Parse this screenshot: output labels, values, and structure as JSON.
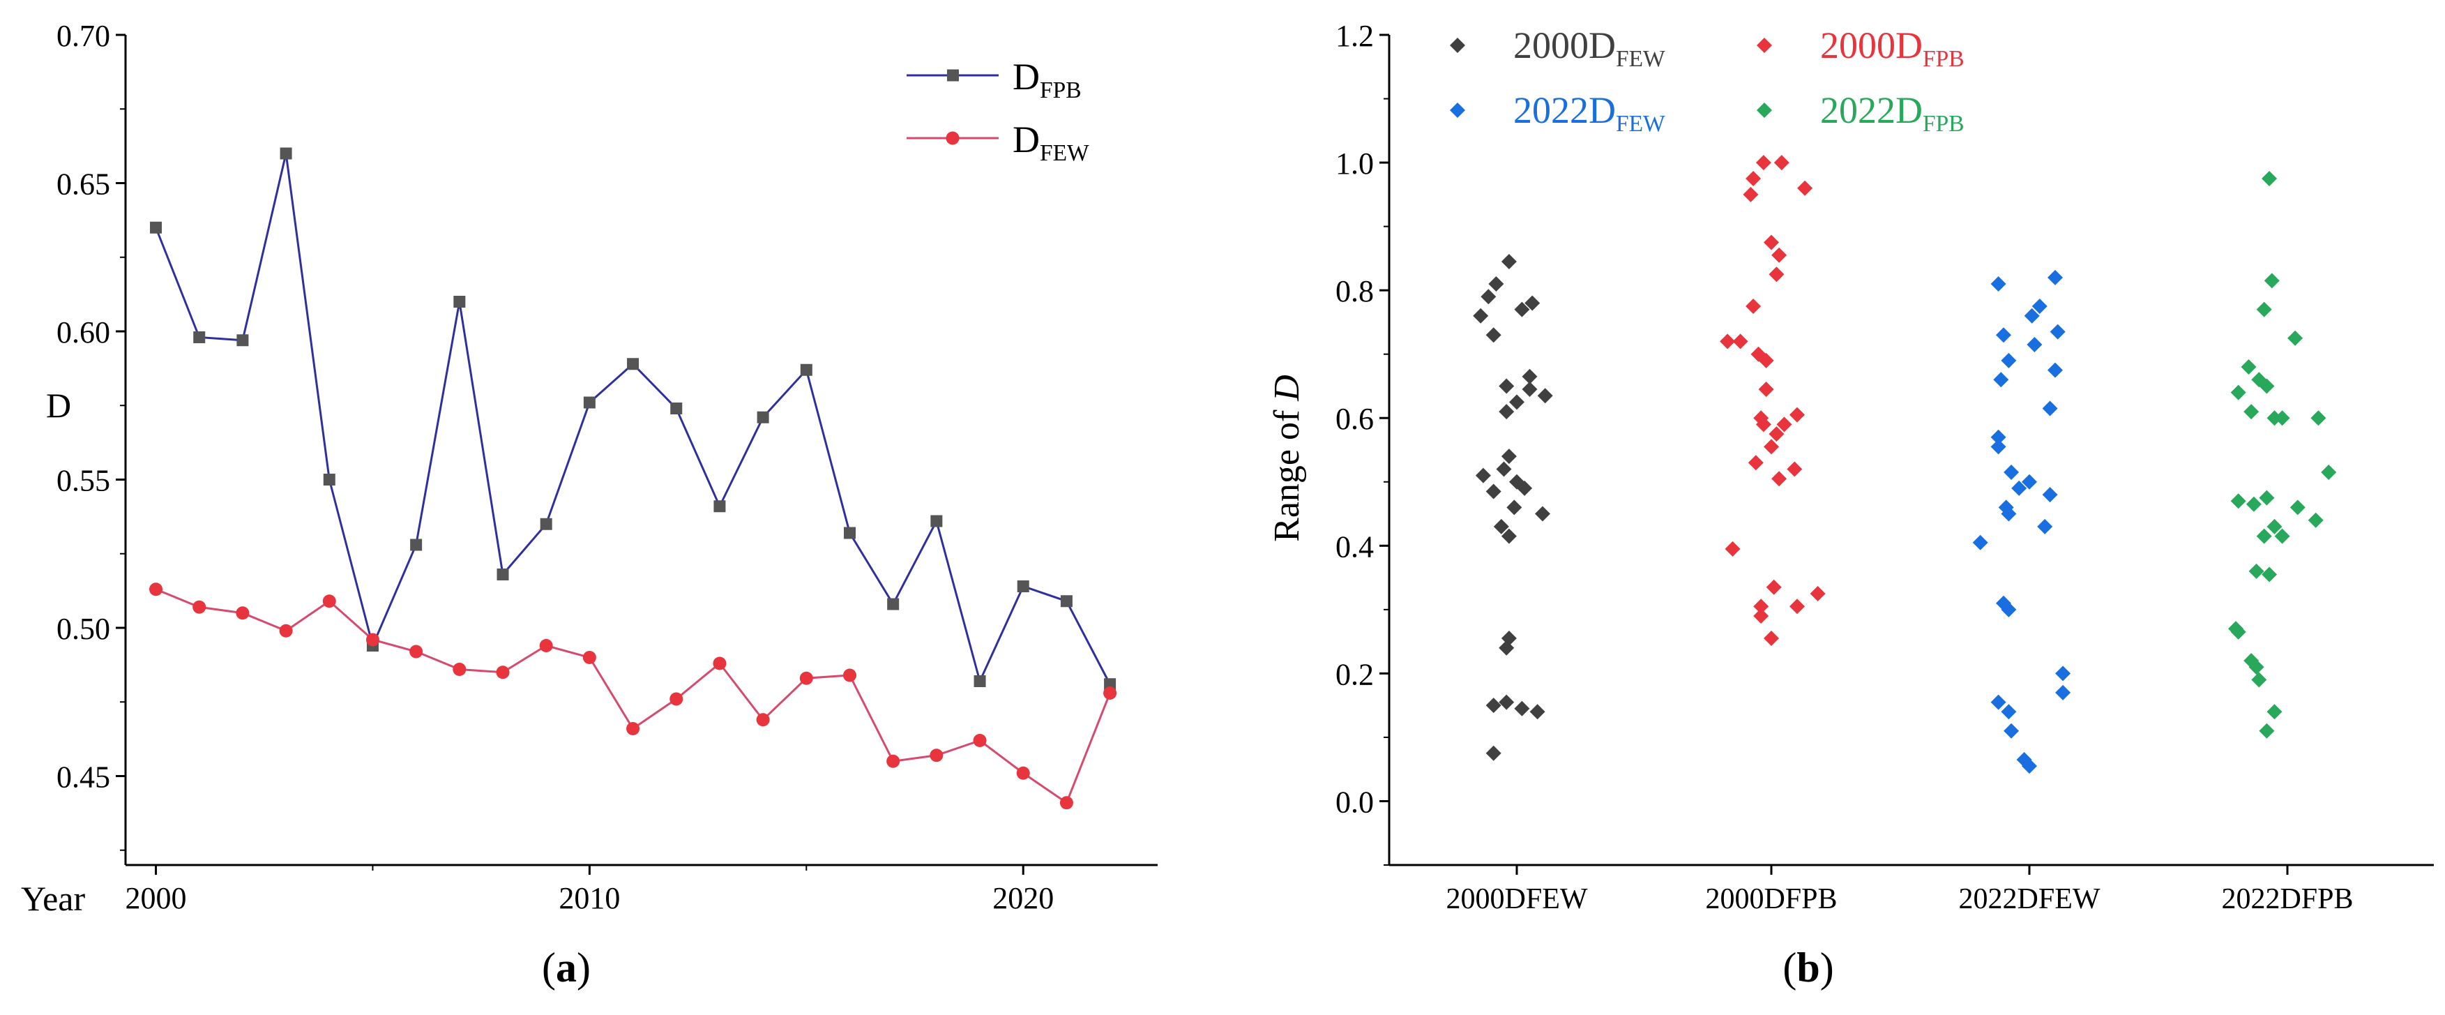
{
  "chart_data": [
    {
      "panel_label": "(a)",
      "panel_label_parts": {
        "open": "(",
        "letter": "a",
        "close": ")"
      },
      "type": "line",
      "xlabel": "Year",
      "ylabel": "D",
      "xlim": [
        1999.3,
        2023.1
      ],
      "ylim": [
        0.42,
        0.7
      ],
      "xticks": [
        2000,
        2010,
        2020
      ],
      "yticks": [
        0.45,
        0.5,
        0.55,
        0.6,
        0.65,
        0.7
      ],
      "ytick_labels": [
        "0.45",
        "0.50",
        "0.55",
        "0.60",
        "0.65",
        "0.70"
      ],
      "legend": [
        {
          "base": "D",
          "sub": "FPB",
          "color": "#2f2fa0",
          "marker": "square"
        },
        {
          "base": "D",
          "sub": "FEW",
          "color": "#d64a6e",
          "marker": "circle"
        }
      ],
      "x": [
        2000,
        2001,
        2002,
        2003,
        2004,
        2005,
        2006,
        2007,
        2008,
        2009,
        2010,
        2011,
        2012,
        2013,
        2014,
        2015,
        2016,
        2017,
        2018,
        2019,
        2020,
        2021,
        2022
      ],
      "series": [
        {
          "name": "DFPB",
          "line_color": "#2f2fa0",
          "marker_color": "#555555",
          "marker": "square",
          "values": [
            0.635,
            0.598,
            0.597,
            0.66,
            0.55,
            0.494,
            0.528,
            0.61,
            0.518,
            0.535,
            0.576,
            0.589,
            0.574,
            0.541,
            0.571,
            0.587,
            0.532,
            0.508,
            0.536,
            0.482,
            0.514,
            0.509,
            0.481
          ]
        },
        {
          "name": "DFEW",
          "line_color": "#d64a6e",
          "marker_color": "#e8343c",
          "marker": "circle",
          "values": [
            0.513,
            0.507,
            0.505,
            0.499,
            0.509,
            0.496,
            0.492,
            0.486,
            0.485,
            0.494,
            0.49,
            0.466,
            0.476,
            0.488,
            0.469,
            0.483,
            0.484,
            0.455,
            0.457,
            0.462,
            0.451,
            0.441,
            0.478
          ]
        }
      ]
    },
    {
      "panel_label": "(b)",
      "panel_label_parts": {
        "open": "(",
        "letter": "b",
        "close": ")"
      },
      "type": "scatter",
      "ylabel": "Range of D",
      "ylabel_parts": {
        "main": "Range of ",
        "italic": "D"
      },
      "ylim": [
        -0.1,
        1.2
      ],
      "yticks": [
        0.0,
        0.2,
        0.4,
        0.6,
        0.8,
        1.0,
        1.2
      ],
      "ytick_labels": [
        "0.0",
        "0.2",
        "0.4",
        "0.6",
        "0.8",
        "1.0",
        "1.2"
      ],
      "categories": [
        "2000DFEW",
        "2000DFPB",
        "2022DFEW",
        "2022DFPB"
      ],
      "legend": [
        {
          "year": "2000",
          "base": "D",
          "sub": "FEW",
          "color": "#404040"
        },
        {
          "year": "2000",
          "base": "D",
          "sub": "FPB",
          "color": "#e8343c"
        },
        {
          "year": "2022",
          "base": "D",
          "sub": "FEW",
          "color": "#1a6fe0"
        },
        {
          "year": "2022",
          "base": "D",
          "sub": "FPB",
          "color": "#27a85a"
        }
      ],
      "series": [
        {
          "name": "2000DFEW",
          "color": "#404040",
          "points": [
            {
              "dx": -0.03,
              "y": 0.845
            },
            {
              "dx": -0.08,
              "y": 0.81
            },
            {
              "dx": -0.11,
              "y": 0.79
            },
            {
              "dx": 0.06,
              "y": 0.78
            },
            {
              "dx": 0.02,
              "y": 0.77
            },
            {
              "dx": -0.14,
              "y": 0.76
            },
            {
              "dx": -0.09,
              "y": 0.73
            },
            {
              "dx": 0.05,
              "y": 0.665
            },
            {
              "dx": -0.04,
              "y": 0.65
            },
            {
              "dx": 0.05,
              "y": 0.645
            },
            {
              "dx": 0.11,
              "y": 0.635
            },
            {
              "dx": 0.0,
              "y": 0.625
            },
            {
              "dx": -0.04,
              "y": 0.61
            },
            {
              "dx": -0.03,
              "y": 0.54
            },
            {
              "dx": -0.05,
              "y": 0.52
            },
            {
              "dx": -0.13,
              "y": 0.51
            },
            {
              "dx": 0.0,
              "y": 0.5
            },
            {
              "dx": 0.03,
              "y": 0.49
            },
            {
              "dx": -0.09,
              "y": 0.485
            },
            {
              "dx": -0.01,
              "y": 0.46
            },
            {
              "dx": 0.1,
              "y": 0.45
            },
            {
              "dx": -0.06,
              "y": 0.43
            },
            {
              "dx": -0.03,
              "y": 0.415
            },
            {
              "dx": -0.03,
              "y": 0.255
            },
            {
              "dx": -0.04,
              "y": 0.24
            },
            {
              "dx": -0.09,
              "y": 0.15
            },
            {
              "dx": -0.04,
              "y": 0.155
            },
            {
              "dx": 0.02,
              "y": 0.145
            },
            {
              "dx": 0.08,
              "y": 0.14
            },
            {
              "dx": -0.09,
              "y": 0.075
            }
          ]
        },
        {
          "name": "2000DFPB",
          "color": "#e8343c",
          "points": [
            {
              "dx": -0.03,
              "y": 1.0
            },
            {
              "dx": 0.04,
              "y": 1.0
            },
            {
              "dx": -0.07,
              "y": 0.975
            },
            {
              "dx": 0.13,
              "y": 0.96
            },
            {
              "dx": -0.08,
              "y": 0.95
            },
            {
              "dx": 0.0,
              "y": 0.875
            },
            {
              "dx": 0.03,
              "y": 0.855
            },
            {
              "dx": 0.02,
              "y": 0.825
            },
            {
              "dx": -0.07,
              "y": 0.775
            },
            {
              "dx": -0.17,
              "y": 0.72
            },
            {
              "dx": -0.12,
              "y": 0.72
            },
            {
              "dx": -0.05,
              "y": 0.7
            },
            {
              "dx": -0.02,
              "y": 0.69
            },
            {
              "dx": -0.02,
              "y": 0.645
            },
            {
              "dx": 0.1,
              "y": 0.605
            },
            {
              "dx": -0.04,
              "y": 0.6
            },
            {
              "dx": -0.03,
              "y": 0.59
            },
            {
              "dx": 0.05,
              "y": 0.59
            },
            {
              "dx": 0.02,
              "y": 0.575
            },
            {
              "dx": 0.0,
              "y": 0.555
            },
            {
              "dx": -0.06,
              "y": 0.53
            },
            {
              "dx": 0.09,
              "y": 0.52
            },
            {
              "dx": 0.03,
              "y": 0.505
            },
            {
              "dx": -0.15,
              "y": 0.395
            },
            {
              "dx": 0.01,
              "y": 0.335
            },
            {
              "dx": 0.18,
              "y": 0.325
            },
            {
              "dx": -0.04,
              "y": 0.305
            },
            {
              "dx": 0.1,
              "y": 0.305
            },
            {
              "dx": -0.04,
              "y": 0.29
            },
            {
              "dx": 0.0,
              "y": 0.255
            }
          ]
        },
        {
          "name": "2022DFEW",
          "color": "#1a6fe0",
          "points": [
            {
              "dx": 0.1,
              "y": 0.82
            },
            {
              "dx": -0.12,
              "y": 0.81
            },
            {
              "dx": 0.04,
              "y": 0.775
            },
            {
              "dx": 0.01,
              "y": 0.76
            },
            {
              "dx": 0.11,
              "y": 0.735
            },
            {
              "dx": -0.1,
              "y": 0.73
            },
            {
              "dx": 0.02,
              "y": 0.715
            },
            {
              "dx": -0.08,
              "y": 0.69
            },
            {
              "dx": 0.1,
              "y": 0.675
            },
            {
              "dx": -0.11,
              "y": 0.66
            },
            {
              "dx": 0.08,
              "y": 0.615
            },
            {
              "dx": -0.12,
              "y": 0.57
            },
            {
              "dx": -0.12,
              "y": 0.555
            },
            {
              "dx": -0.07,
              "y": 0.515
            },
            {
              "dx": 0.0,
              "y": 0.5
            },
            {
              "dx": -0.04,
              "y": 0.49
            },
            {
              "dx": 0.08,
              "y": 0.48
            },
            {
              "dx": -0.09,
              "y": 0.46
            },
            {
              "dx": -0.08,
              "y": 0.45
            },
            {
              "dx": 0.06,
              "y": 0.43
            },
            {
              "dx": -0.19,
              "y": 0.405
            },
            {
              "dx": -0.1,
              "y": 0.31
            },
            {
              "dx": -0.08,
              "y": 0.3
            },
            {
              "dx": 0.13,
              "y": 0.2
            },
            {
              "dx": 0.13,
              "y": 0.17
            },
            {
              "dx": -0.12,
              "y": 0.155
            },
            {
              "dx": -0.08,
              "y": 0.14
            },
            {
              "dx": -0.07,
              "y": 0.11
            },
            {
              "dx": -0.02,
              "y": 0.065
            },
            {
              "dx": 0.0,
              "y": 0.055
            }
          ]
        },
        {
          "name": "2022DFPB",
          "color": "#27a85a",
          "points": [
            {
              "dx": -0.07,
              "y": 0.975
            },
            {
              "dx": -0.06,
              "y": 0.815
            },
            {
              "dx": -0.09,
              "y": 0.77
            },
            {
              "dx": 0.03,
              "y": 0.725
            },
            {
              "dx": -0.15,
              "y": 0.68
            },
            {
              "dx": -0.11,
              "y": 0.66
            },
            {
              "dx": -0.08,
              "y": 0.65
            },
            {
              "dx": -0.19,
              "y": 0.64
            },
            {
              "dx": -0.14,
              "y": 0.61
            },
            {
              "dx": -0.05,
              "y": 0.6
            },
            {
              "dx": -0.02,
              "y": 0.6
            },
            {
              "dx": 0.12,
              "y": 0.6
            },
            {
              "dx": 0.16,
              "y": 0.515
            },
            {
              "dx": -0.08,
              "y": 0.475
            },
            {
              "dx": -0.19,
              "y": 0.47
            },
            {
              "dx": -0.13,
              "y": 0.465
            },
            {
              "dx": 0.04,
              "y": 0.46
            },
            {
              "dx": 0.11,
              "y": 0.44
            },
            {
              "dx": -0.05,
              "y": 0.43
            },
            {
              "dx": -0.09,
              "y": 0.415
            },
            {
              "dx": -0.02,
              "y": 0.415
            },
            {
              "dx": -0.12,
              "y": 0.36
            },
            {
              "dx": -0.07,
              "y": 0.355
            },
            {
              "dx": -0.2,
              "y": 0.27
            },
            {
              "dx": -0.19,
              "y": 0.265
            },
            {
              "dx": -0.14,
              "y": 0.22
            },
            {
              "dx": -0.12,
              "y": 0.21
            },
            {
              "dx": -0.11,
              "y": 0.19
            },
            {
              "dx": -0.05,
              "y": 0.14
            },
            {
              "dx": -0.08,
              "y": 0.11
            }
          ]
        }
      ]
    }
  ]
}
